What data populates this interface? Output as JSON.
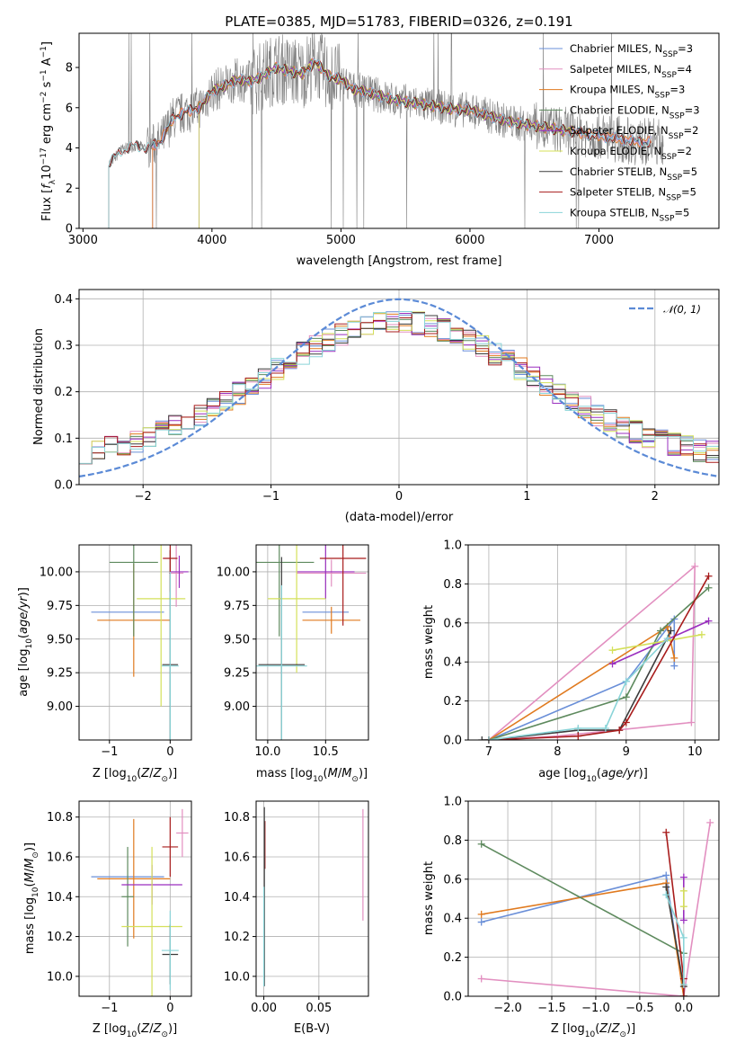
{
  "colors": {
    "Chabrier MILES": "#6a8fd8",
    "Salpeter MILES": "#e28fc0",
    "Kroupa MILES": "#e07a1f",
    "Chabrier ELODIE": "#5e8a5e",
    "Salpeter ELODIE": "#9a2fbf",
    "Kroupa ELODIE": "#d4e05a",
    "Chabrier STELIB": "#3c3c3c",
    "Salpeter STELIB": "#a81c1c",
    "Kroupa STELIB": "#8ad4d8",
    "data": "#808080",
    "normal": "#5b8ad6"
  },
  "chart_data": [
    {
      "id": "spectrum",
      "type": "line",
      "title": "PLATE=0385, MJD=51783, FIBERID=0326, z=0.191",
      "xlabel": "wavelength [Angstrom, rest frame]",
      "ylabel_parts": [
        "Flux [",
        "f",
        "λ",
        "10",
        "−17",
        " erg cm",
        "−2",
        " s",
        "−1",
        " A",
        "−1",
        "]"
      ],
      "xlim": [
        2970,
        7930
      ],
      "ylim": [
        0,
        9.7
      ],
      "xticks": [
        3000,
        4000,
        5000,
        6000,
        7000
      ],
      "yticks": [
        0,
        2,
        4,
        6,
        8
      ],
      "legend_position": "top-right",
      "legend": [
        {
          "model": "Chabrier MILES",
          "n": "3"
        },
        {
          "model": "Salpeter MILES",
          "n": "4"
        },
        {
          "model": "Kroupa MILES",
          "n": "3"
        },
        {
          "model": "Chabrier ELODIE",
          "n": "3"
        },
        {
          "model": "Salpeter ELODIE",
          "n": "2"
        },
        {
          "model": "Kroupa ELODIE",
          "n": "2"
        },
        {
          "model": "Chabrier STELIB",
          "n": "5"
        },
        {
          "model": "Salpeter STELIB",
          "n": "5"
        },
        {
          "model": "Kroupa STELIB",
          "n": "5"
        }
      ],
      "legend_label_template": [
        "",
        ", N",
        "SSP",
        "="
      ],
      "continuum": [
        [
          3200,
          3.2
        ],
        [
          3300,
          3.9
        ],
        [
          3400,
          4.1
        ],
        [
          3500,
          4.0
        ],
        [
          3600,
          4.3
        ],
        [
          3700,
          5.5
        ],
        [
          3800,
          5.8
        ],
        [
          3900,
          6.0
        ],
        [
          4000,
          6.8
        ],
        [
          4100,
          7.1
        ],
        [
          4200,
          7.4
        ],
        [
          4300,
          7.3
        ],
        [
          4400,
          7.6
        ],
        [
          4500,
          8.0
        ],
        [
          4600,
          7.8
        ],
        [
          4700,
          7.7
        ],
        [
          4800,
          8.3
        ],
        [
          4900,
          7.6
        ],
        [
          5000,
          7.4
        ],
        [
          5100,
          6.9
        ],
        [
          5200,
          6.8
        ],
        [
          5300,
          6.6
        ],
        [
          5400,
          6.4
        ],
        [
          5500,
          6.3
        ],
        [
          5600,
          6.2
        ],
        [
          5700,
          6.1
        ],
        [
          5800,
          6.0
        ],
        [
          5900,
          5.9
        ],
        [
          6000,
          5.9
        ],
        [
          6100,
          5.7
        ],
        [
          6200,
          5.5
        ],
        [
          6300,
          5.3
        ],
        [
          6400,
          5.2
        ],
        [
          6500,
          5.1
        ],
        [
          6600,
          5.0
        ],
        [
          6700,
          4.9
        ],
        [
          6800,
          4.8
        ],
        [
          6900,
          4.7
        ],
        [
          7000,
          4.6
        ],
        [
          7100,
          4.5
        ],
        [
          7200,
          4.4
        ],
        [
          7300,
          4.3
        ],
        [
          7400,
          4.3
        ],
        [
          7500,
          4.3
        ]
      ],
      "model_ranges": {
        "Chabrier MILES": [
          3540,
          7410
        ],
        "Salpeter MILES": [
          3540,
          7410
        ],
        "Kroupa MILES": [
          3540,
          7410
        ],
        "Chabrier ELODIE": [
          3900,
          6800
        ],
        "Salpeter ELODIE": [
          3900,
          6800
        ],
        "Kroupa ELODIE": [
          3900,
          6800
        ],
        "Chabrier STELIB": [
          3200,
          7400
        ],
        "Salpeter STELIB": [
          3200,
          7400
        ],
        "Kroupa STELIB": [
          3200,
          7400
        ]
      }
    },
    {
      "id": "residuals",
      "type": "histogram",
      "xlabel": "(data-model)/error",
      "ylabel": "Normed distribution",
      "xlim": [
        -2.5,
        2.5
      ],
      "ylim": [
        0,
        0.42
      ],
      "xticks": [
        -2,
        -1,
        0,
        1,
        2
      ],
      "yticks": [
        0.0,
        0.1,
        0.2,
        0.3,
        0.4
      ],
      "grid": true,
      "legend_position": "top-right",
      "reference_curve": {
        "label": "𝒩(0, 1)",
        "mean": 0,
        "sigma": 1
      },
      "bins_per_unit": 10
    },
    {
      "id": "age_vs_Z",
      "type": "errorbar",
      "xlabel": "Z [log10(Z/Z⊙)]",
      "ylabel": "age  [log10(age/yr)]",
      "xlim": [
        -1.5,
        0.35
      ],
      "ylim": [
        8.75,
        10.2
      ],
      "xticks": [
        -1,
        0
      ],
      "yticks": [
        9.0,
        9.25,
        9.5,
        9.75,
        10.0
      ],
      "grid": true,
      "points": [
        {
          "model": "Chabrier MILES",
          "x": -0.7,
          "xerr": 0.6,
          "y": 9.7,
          "yerr": 0.0
        },
        {
          "model": "Salpeter MILES",
          "x": 0.1,
          "xerr": 0.12,
          "y": 9.99,
          "yerr": 0.25
        },
        {
          "model": "Kroupa MILES",
          "x": -0.6,
          "xerr": 0.6,
          "y": 9.64,
          "yerr": 0.42
        },
        {
          "model": "Chabrier ELODIE",
          "x": -0.6,
          "xerr": 0.4,
          "y": 10.07,
          "yerr": 0.55
        },
        {
          "model": "Salpeter ELODIE",
          "x": 0.15,
          "xerr": 0.15,
          "y": 10.0,
          "yerr": 0.12
        },
        {
          "model": "Kroupa ELODIE",
          "x": -0.15,
          "xerr": 0.4,
          "y": 9.8,
          "yerr": 0.8
        },
        {
          "model": "Chabrier STELIB",
          "x": 0.0,
          "xerr": 0.13,
          "y": 9.31,
          "yerr": 0.85
        },
        {
          "model": "Salpeter STELIB",
          "x": 0.0,
          "xerr": 0.12,
          "y": 10.1,
          "yerr": 0.25
        },
        {
          "model": "Kroupa STELIB",
          "x": 0.0,
          "xerr": 0.14,
          "y": 9.3,
          "yerr": 0.7
        }
      ]
    },
    {
      "id": "age_vs_mass",
      "type": "errorbar",
      "xlabel": "mass [log10(M/M⊙)]",
      "ylabel": "",
      "xlim": [
        9.9,
        10.87
      ],
      "ylim": [
        8.75,
        10.2
      ],
      "xticks": [
        10.0,
        10.5
      ],
      "yticks": [
        9.0,
        9.25,
        9.5,
        9.75,
        10.0
      ],
      "grid": true,
      "points": [
        {
          "model": "Chabrier MILES",
          "x": 10.5,
          "xerr": 0.2,
          "y": 9.7,
          "yerr": 0.0
        },
        {
          "model": "Salpeter MILES",
          "x": 10.55,
          "xerr": 0.3,
          "y": 9.99,
          "yerr": 0.1
        },
        {
          "model": "Kroupa MILES",
          "x": 10.55,
          "xerr": 0.25,
          "y": 9.64,
          "yerr": 0.1
        },
        {
          "model": "Chabrier ELODIE",
          "x": 10.1,
          "xerr": 0.3,
          "y": 10.07,
          "yerr": 0.55
        },
        {
          "model": "Salpeter ELODIE",
          "x": 10.5,
          "xerr": 0.25,
          "y": 10.0,
          "yerr": 0.2
        },
        {
          "model": "Kroupa ELODIE",
          "x": 10.25,
          "xerr": 0.25,
          "y": 9.8,
          "yerr": 0.55
        },
        {
          "model": "Chabrier STELIB",
          "x": 10.12,
          "xerr": 0.2,
          "y": 9.31,
          "yerr": 0.8
        },
        {
          "model": "Salpeter STELIB",
          "x": 10.65,
          "xerr": 0.2,
          "y": 10.1,
          "yerr": 0.5
        },
        {
          "model": "Kroupa STELIB",
          "x": 10.12,
          "xerr": 0.22,
          "y": 9.3,
          "yerr": 0.6
        }
      ]
    },
    {
      "id": "weight_vs_age",
      "type": "line",
      "xlabel": "age  [log10(age/yr)]",
      "ylabel": "mass weight",
      "xlim": [
        6.7,
        10.35
      ],
      "ylim": [
        0,
        1.0
      ],
      "xticks": [
        7,
        8,
        9,
        10
      ],
      "yticks": [
        0.0,
        0.2,
        0.4,
        0.6,
        0.8,
        1.0
      ],
      "grid": true,
      "series": [
        {
          "model": "Chabrier MILES",
          "x": [
            7.0,
            9.0,
            9.7,
            9.7
          ],
          "y": [
            0.0,
            0.3,
            0.62,
            0.38
          ]
        },
        {
          "model": "Salpeter MILES",
          "x": [
            7.0,
            8.0,
            9.95,
            10.0,
            7.0
          ],
          "y": [
            0.0,
            0.02,
            0.09,
            0.89,
            0.0
          ]
        },
        {
          "model": "Kroupa MILES",
          "x": [
            7.0,
            9.6,
            9.7
          ],
          "y": [
            0.0,
            0.58,
            0.42
          ]
        },
        {
          "model": "Chabrier ELODIE",
          "x": [
            7.0,
            9.0,
            9.5,
            10.2
          ],
          "y": [
            0.0,
            0.22,
            0.56,
            0.78
          ]
        },
        {
          "model": "Salpeter ELODIE",
          "x": [
            8.8,
            10.2
          ],
          "y": [
            0.39,
            0.61
          ]
        },
        {
          "model": "Kroupa ELODIE",
          "x": [
            8.8,
            10.1
          ],
          "y": [
            0.46,
            0.54
          ]
        },
        {
          "model": "Chabrier STELIB",
          "x": [
            6.9,
            7.0,
            8.3,
            8.9,
            9.65
          ],
          "y": [
            0.0,
            0.0,
            0.05,
            0.05,
            0.56
          ]
        },
        {
          "model": "Salpeter STELIB",
          "x": [
            7.0,
            8.3,
            8.9,
            9.0,
            10.2
          ],
          "y": [
            0.0,
            0.02,
            0.05,
            0.09,
            0.84
          ]
        },
        {
          "model": "Kroupa STELIB",
          "x": [
            7.0,
            8.3,
            8.7,
            9.0,
            9.6
          ],
          "y": [
            0.0,
            0.06,
            0.06,
            0.3,
            0.52
          ]
        }
      ]
    },
    {
      "id": "mass_vs_Z",
      "type": "errorbar",
      "xlabel": "Z [log10(Z/Z⊙)]",
      "ylabel": "mass [log10(M/M⊙)]",
      "xlim": [
        -1.5,
        0.35
      ],
      "ylim": [
        9.9,
        10.88
      ],
      "xticks": [
        -1,
        0
      ],
      "yticks": [
        10.0,
        10.2,
        10.4,
        10.6,
        10.8
      ],
      "grid": true,
      "points": [
        {
          "model": "Chabrier MILES",
          "x": -0.7,
          "xerr": 0.6,
          "y": 10.5,
          "yerr": 0.0
        },
        {
          "model": "Salpeter MILES",
          "x": 0.2,
          "xerr": 0.1,
          "y": 10.72,
          "yerr": 0.12
        },
        {
          "model": "Kroupa MILES",
          "x": -0.6,
          "xerr": 0.6,
          "y": 10.49,
          "yerr": 0.3
        },
        {
          "model": "Chabrier ELODIE",
          "x": -0.7,
          "xerr": 0.1,
          "y": 10.4,
          "yerr": 0.25
        },
        {
          "model": "Salpeter ELODIE",
          "x": -0.3,
          "xerr": 0.5,
          "y": 10.46,
          "yerr": 0.1
        },
        {
          "model": "Kroupa ELODIE",
          "x": -0.3,
          "xerr": 0.5,
          "y": 10.25,
          "yerr": 0.4
        },
        {
          "model": "Chabrier STELIB",
          "x": 0.0,
          "xerr": 0.13,
          "y": 10.11,
          "yerr": 0.15
        },
        {
          "model": "Salpeter STELIB",
          "x": 0.0,
          "xerr": 0.13,
          "y": 10.65,
          "yerr": 0.15
        },
        {
          "model": "Kroupa STELIB",
          "x": 0.0,
          "xerr": 0.14,
          "y": 10.13,
          "yerr": 0.2
        }
      ]
    },
    {
      "id": "mass_vs_ebv",
      "type": "errorbar",
      "xlabel": "E(B-V)",
      "ylabel": "",
      "xlim": [
        -0.007,
        0.095
      ],
      "ylim": [
        9.9,
        10.88
      ],
      "xticks": [
        0.0,
        0.05
      ],
      "xtick_labels": [
        "0.00",
        "0.05"
      ],
      "yticks": [
        10.0,
        10.2,
        10.4,
        10.6,
        10.8
      ],
      "grid": true,
      "points": [
        {
          "model": "Salpeter MILES",
          "x": 0.09,
          "xerr": 0,
          "y": 10.56,
          "yerr": 0.28
        },
        {
          "model": "Salpeter STELIB",
          "x": 0.001,
          "xerr": 0,
          "y": 10.66,
          "yerr": 0.12
        },
        {
          "model": "Chabrier STELIB",
          "x": 0.0005,
          "xerr": 0,
          "y": 10.4,
          "yerr": 0.45
        },
        {
          "model": "Kroupa STELIB",
          "x": 0.0,
          "xerr": 0,
          "y": 10.2,
          "yerr": 0.25
        }
      ]
    },
    {
      "id": "weight_vs_Z",
      "type": "line",
      "xlabel": "Z [log10(Z/Z⊙)]",
      "ylabel": "mass weight",
      "xlim": [
        -2.45,
        0.4
      ],
      "ylim": [
        0,
        1.0
      ],
      "xticks": [
        -2.0,
        -1.5,
        -1.0,
        -0.5,
        0.0
      ],
      "yticks": [
        0.0,
        0.2,
        0.4,
        0.6,
        0.8,
        1.0
      ],
      "grid": true,
      "series": [
        {
          "model": "Chabrier MILES",
          "x": [
            -2.3,
            -0.2,
            0.0
          ],
          "y": [
            0.38,
            0.62,
            0.0
          ]
        },
        {
          "model": "Salpeter MILES",
          "x": [
            -2.3,
            0.0,
            0.3
          ],
          "y": [
            0.09,
            0.0,
            0.89
          ]
        },
        {
          "model": "Kroupa MILES",
          "x": [
            -2.3,
            -0.2,
            0.0
          ],
          "y": [
            0.42,
            0.58,
            0.0
          ]
        },
        {
          "model": "Chabrier ELODIE",
          "x": [
            -2.3,
            0.0,
            0.0
          ],
          "y": [
            0.78,
            0.22,
            0.0
          ]
        },
        {
          "model": "Salpeter ELODIE",
          "x": [
            0.0,
            0.0
          ],
          "y": [
            0.61,
            0.39
          ]
        },
        {
          "model": "Kroupa ELODIE",
          "x": [
            0.0,
            0.0
          ],
          "y": [
            0.54,
            0.46
          ]
        },
        {
          "model": "Chabrier STELIB",
          "x": [
            -0.2,
            0.0,
            0.0
          ],
          "y": [
            0.56,
            0.05,
            0.0
          ]
        },
        {
          "model": "Salpeter STELIB",
          "x": [
            -0.2,
            0.0,
            0.0
          ],
          "y": [
            0.84,
            0.09,
            0.0
          ]
        },
        {
          "model": "Kroupa STELIB",
          "x": [
            -0.2,
            0.0,
            0.0
          ],
          "y": [
            0.52,
            0.3,
            0.06
          ]
        }
      ]
    }
  ]
}
